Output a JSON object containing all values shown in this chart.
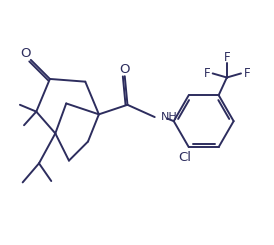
{
  "bg_color": "#ffffff",
  "line_color": "#2d2d5e",
  "line_width": 1.4,
  "font_size": 8.5,
  "figsize": [
    2.74,
    2.45
  ],
  "dpi": 100,
  "xlim": [
    0,
    10
  ],
  "ylim": [
    0,
    9
  ]
}
